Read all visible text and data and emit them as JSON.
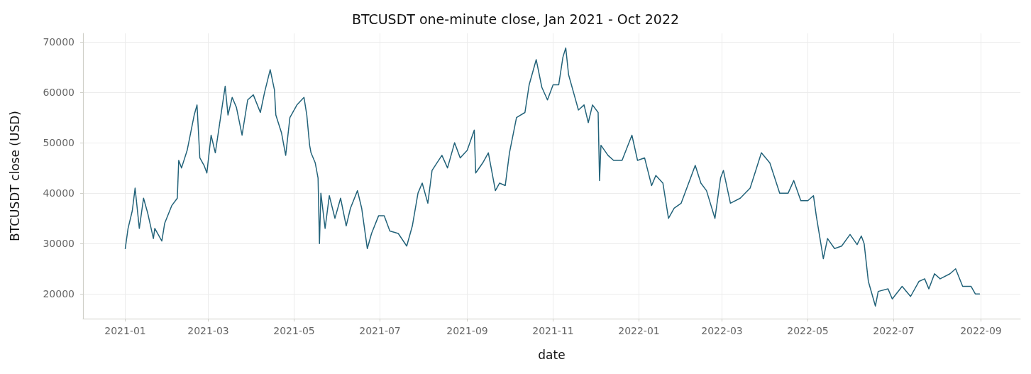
{
  "chart_data": {
    "type": "line",
    "title": "BTCUSDT one-minute close, Jan 2021 - Oct 2022",
    "xlabel": "date",
    "ylabel": "BTCUSDT close (USD)",
    "xlim": [
      "2020-12-02",
      "2022-09-29"
    ],
    "xticks": [
      "2021-01",
      "2021-03",
      "2021-05",
      "2021-07",
      "2021-09",
      "2021-11",
      "2022-01",
      "2022-03",
      "2022-05",
      "2022-07",
      "2022-09"
    ],
    "ylim": [
      15100,
      71700
    ],
    "yticks": [
      20000,
      30000,
      40000,
      50000,
      60000,
      70000
    ],
    "grid": true,
    "marker": "none",
    "line_style": "solid",
    "x": [
      "2021-01-01",
      "2021-01-03",
      "2021-01-06",
      "2021-01-08",
      "2021-01-11",
      "2021-01-14",
      "2021-01-17",
      "2021-01-21",
      "2021-01-22",
      "2021-01-27",
      "2021-01-29",
      "2021-02-03",
      "2021-02-07",
      "2021-02-08",
      "2021-02-10",
      "2021-02-14",
      "2021-02-19",
      "2021-02-21",
      "2021-02-23",
      "2021-02-26",
      "2021-02-28",
      "2021-03-03",
      "2021-03-06",
      "2021-03-13",
      "2021-03-15",
      "2021-03-18",
      "2021-03-21",
      "2021-03-25",
      "2021-03-29",
      "2021-04-02",
      "2021-04-07",
      "2021-04-10",
      "2021-04-14",
      "2021-04-17",
      "2021-04-18",
      "2021-04-22",
      "2021-04-25",
      "2021-04-28",
      "2021-05-03",
      "2021-05-08",
      "2021-05-10",
      "2021-05-12",
      "2021-05-13",
      "2021-05-16",
      "2021-05-18",
      "2021-05-19",
      "2021-05-20",
      "2021-05-23",
      "2021-05-26",
      "2021-05-30",
      "2021-06-03",
      "2021-06-07",
      "2021-06-10",
      "2021-06-15",
      "2021-06-18",
      "2021-06-22",
      "2021-06-25",
      "2021-06-30",
      "2021-07-04",
      "2021-07-08",
      "2021-07-14",
      "2021-07-20",
      "2021-07-24",
      "2021-07-28",
      "2021-07-31",
      "2021-08-04",
      "2021-08-07",
      "2021-08-14",
      "2021-08-18",
      "2021-08-23",
      "2021-08-27",
      "2021-09-01",
      "2021-09-06",
      "2021-09-07",
      "2021-09-12",
      "2021-09-16",
      "2021-09-21",
      "2021-09-24",
      "2021-09-28",
      "2021-10-01",
      "2021-10-06",
      "2021-10-12",
      "2021-10-15",
      "2021-10-20",
      "2021-10-24",
      "2021-10-28",
      "2021-11-01",
      "2021-11-05",
      "2021-11-08",
      "2021-11-10",
      "2021-11-12",
      "2021-11-16",
      "2021-11-19",
      "2021-11-23",
      "2021-11-26",
      "2021-11-29",
      "2021-12-03",
      "2021-12-04",
      "2021-12-05",
      "2021-12-10",
      "2021-12-14",
      "2021-12-20",
      "2021-12-27",
      "2021-12-31",
      "2022-01-05",
      "2022-01-10",
      "2022-01-13",
      "2022-01-18",
      "2022-01-22",
      "2022-01-26",
      "2022-01-31",
      "2022-02-04",
      "2022-02-10",
      "2022-02-14",
      "2022-02-18",
      "2022-02-24",
      "2022-02-28",
      "2022-03-02",
      "2022-03-07",
      "2022-03-14",
      "2022-03-21",
      "2022-03-25",
      "2022-03-29",
      "2022-04-04",
      "2022-04-11",
      "2022-04-17",
      "2022-04-21",
      "2022-04-26",
      "2022-05-01",
      "2022-05-05",
      "2022-05-07",
      "2022-05-12",
      "2022-05-15",
      "2022-05-20",
      "2022-05-25",
      "2022-05-31",
      "2022-06-05",
      "2022-06-08",
      "2022-06-10",
      "2022-06-13",
      "2022-06-18",
      "2022-06-20",
      "2022-06-27",
      "2022-06-30",
      "2022-07-07",
      "2022-07-13",
      "2022-07-19",
      "2022-07-23",
      "2022-07-26",
      "2022-07-30",
      "2022-08-03",
      "2022-08-10",
      "2022-08-14",
      "2022-08-19",
      "2022-08-25",
      "2022-08-28",
      "2022-08-31"
    ],
    "series": [
      {
        "color": "#23637a",
        "values": [
          29000,
          33000,
          36500,
          41000,
          33000,
          39000,
          36000,
          31000,
          33000,
          30500,
          34000,
          37500,
          39000,
          46500,
          45000,
          48500,
          55500,
          57500,
          47000,
          45500,
          44000,
          51500,
          48000,
          61200,
          55500,
          59000,
          57000,
          51500,
          58500,
          59500,
          56000,
          60000,
          64500,
          60500,
          55500,
          52000,
          47500,
          55000,
          57500,
          59000,
          55500,
          49500,
          48000,
          46000,
          43000,
          30000,
          40000,
          33000,
          39500,
          35000,
          39000,
          33500,
          37000,
          40500,
          37000,
          29000,
          32000,
          35500,
          35500,
          32500,
          32000,
          29500,
          33500,
          40000,
          42000,
          38000,
          44500,
          47500,
          45000,
          50000,
          47000,
          48500,
          52500,
          44000,
          46000,
          48000,
          40500,
          42000,
          41500,
          48000,
          55000,
          56000,
          61500,
          66500,
          61000,
          58500,
          61500,
          61500,
          67000,
          68800,
          63500,
          59500,
          56500,
          57500,
          54000,
          57500,
          56000,
          42500,
          49500,
          47500,
          46500,
          46500,
          51500,
          46500,
          47000,
          41500,
          43500,
          42000,
          35000,
          37000,
          38000,
          41000,
          45500,
          42000,
          40500,
          35000,
          43000,
          44500,
          38000,
          39000,
          41000,
          44500,
          48000,
          46000,
          40000,
          40000,
          42500,
          38500,
          38500,
          39500,
          35500,
          27000,
          31000,
          29000,
          29500,
          31800,
          29800,
          31500,
          30000,
          22500,
          17600,
          20500,
          21000,
          19000,
          21500,
          19500,
          22500,
          23000,
          21000,
          24000,
          23000,
          24000,
          25000,
          21500,
          21500,
          20000,
          20000
        ]
      }
    ]
  }
}
